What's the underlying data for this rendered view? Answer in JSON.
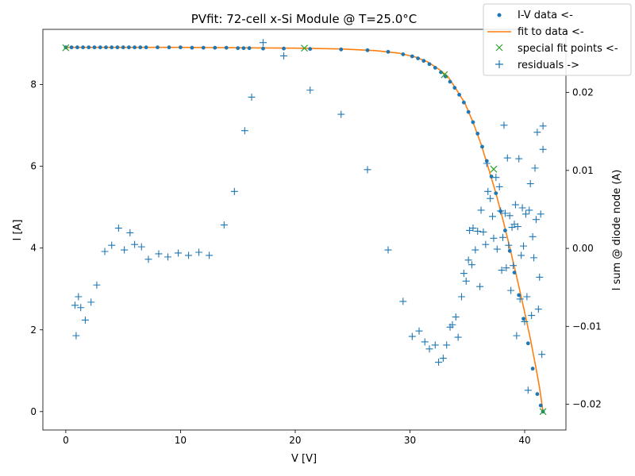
{
  "chart_data": {
    "type": "scatter",
    "title": "PVfit: 72-cell x-Si Module @ T=25.0°C",
    "xlabel": "V [V]",
    "ylabel": "I [A]",
    "y2label": "I sum @ diode node (A)",
    "xlim": [
      -2.0,
      43.6
    ],
    "ylim": [
      -0.45,
      9.35
    ],
    "y2lim": [
      -0.0233,
      0.0281
    ],
    "xticks": [
      0,
      10,
      20,
      30,
      40
    ],
    "yticks": [
      0,
      2,
      4,
      6,
      8
    ],
    "y2ticks": [
      -0.02,
      -0.01,
      0.0,
      0.01,
      0.02
    ],
    "xtick_labels": [
      "0",
      "10",
      "20",
      "30",
      "40"
    ],
    "ytick_labels": [
      "0",
      "2",
      "4",
      "6",
      "8"
    ],
    "y2tick_labels": [
      "−0.02",
      "−0.01",
      "0.00",
      "0.01",
      "0.02"
    ],
    "legend": {
      "position": "top-right",
      "entries": [
        "I-V data <-",
        "fit to data <-",
        "special fit points <-",
        "residuals ->"
      ]
    },
    "colors": {
      "data": "#1f77b4",
      "fit": "#ff7f0e",
      "special": "#2ca02c",
      "residuals": "#1f77b4"
    },
    "series": [
      {
        "name": "I-V data <-",
        "kind": "points",
        "x": [
          0.0,
          0.5,
          1.0,
          1.5,
          2.0,
          2.5,
          3.0,
          3.5,
          4.0,
          4.5,
          5.0,
          5.5,
          6.0,
          6.5,
          7.0,
          8.0,
          9.0,
          10.0,
          11.0,
          12.0,
          13.0,
          14.0,
          15.0,
          15.5,
          16.0,
          17.2,
          19.0,
          21.3,
          24.0,
          26.3,
          28.1,
          29.4,
          30.2,
          30.7,
          31.2,
          31.7,
          32.2,
          32.7,
          33.1,
          33.5,
          33.9,
          34.3,
          34.7,
          35.1,
          35.5,
          35.9,
          36.3,
          36.7,
          37.1,
          37.5,
          37.9,
          38.3,
          38.7,
          39.1,
          39.5,
          39.9,
          40.3,
          40.7,
          41.1,
          41.4,
          41.6
        ],
        "y": [
          8.91,
          8.91,
          8.91,
          8.91,
          8.91,
          8.91,
          8.91,
          8.91,
          8.91,
          8.91,
          8.91,
          8.91,
          8.91,
          8.91,
          8.91,
          8.91,
          8.91,
          8.91,
          8.9,
          8.9,
          8.9,
          8.9,
          8.89,
          8.89,
          8.89,
          8.88,
          8.88,
          8.87,
          8.86,
          8.84,
          8.8,
          8.74,
          8.69,
          8.64,
          8.58,
          8.5,
          8.41,
          8.3,
          8.2,
          8.07,
          7.92,
          7.75,
          7.56,
          7.33,
          7.08,
          6.8,
          6.48,
          6.13,
          5.75,
          5.34,
          4.9,
          4.43,
          3.93,
          3.4,
          2.85,
          2.27,
          1.67,
          1.05,
          0.43,
          0.15,
          0.0
        ]
      },
      {
        "name": "fit to data <-",
        "kind": "line",
        "x": [
          0.0,
          5.0,
          10.0,
          15.0,
          20.0,
          24.0,
          27.0,
          29.0,
          30.5,
          31.5,
          32.5,
          33.3,
          34.0,
          34.8,
          35.5,
          36.2,
          36.9,
          37.5,
          38.1,
          38.7,
          39.3,
          39.9,
          40.5,
          41.0,
          41.3,
          41.6
        ],
        "y": [
          8.91,
          8.91,
          8.91,
          8.9,
          8.89,
          8.87,
          8.83,
          8.77,
          8.67,
          8.56,
          8.38,
          8.2,
          7.9,
          7.54,
          7.08,
          6.54,
          5.9,
          5.34,
          4.7,
          4.02,
          3.3,
          2.56,
          1.78,
          1.05,
          0.58,
          0.0
        ]
      },
      {
        "name": "special fit points <-",
        "kind": "points",
        "x": [
          0.0,
          20.8,
          33.0,
          37.3,
          41.6
        ],
        "y": [
          8.9,
          8.89,
          8.24,
          5.93,
          0.0
        ]
      },
      {
        "name": "residuals ->",
        "kind": "points",
        "axis": "y2",
        "x": [
          0.8,
          0.9,
          1.1,
          1.3,
          1.7,
          2.2,
          2.7,
          3.4,
          4.0,
          4.6,
          5.1,
          5.6,
          6.0,
          6.6,
          7.2,
          8.1,
          8.9,
          9.8,
          10.7,
          11.6,
          12.5,
          13.8,
          14.7,
          15.6,
          16.2,
          17.2,
          19.0,
          21.3,
          24.0,
          26.3,
          28.1,
          29.4,
          30.2,
          30.8,
          31.3,
          31.7,
          32.2,
          32.5,
          32.9,
          33.2,
          33.5,
          33.7,
          34.0,
          34.2,
          34.5,
          34.7,
          34.9,
          35.1,
          35.2,
          35.4,
          35.5,
          35.7,
          35.9,
          36.1,
          36.2,
          36.4,
          36.6,
          36.7,
          36.8,
          37.0,
          37.2,
          37.3,
          37.5,
          37.6,
          37.8,
          37.9,
          38.0,
          38.1,
          38.2,
          38.3,
          38.4,
          38.5,
          38.6,
          38.7,
          38.8,
          38.9,
          39.0,
          39.1,
          39.2,
          39.3,
          39.4,
          39.5,
          39.6,
          39.7,
          39.8,
          39.9,
          40.0,
          40.1,
          40.2,
          40.3,
          40.4,
          40.5,
          40.6,
          40.7,
          40.8,
          40.9,
          41.0,
          41.1,
          41.2,
          41.3,
          41.4,
          41.5,
          41.6,
          41.6
        ],
        "y": [
          -0.0073,
          -0.0112,
          -0.0062,
          -0.0076,
          -0.0092,
          -0.0069,
          -0.0047,
          -0.0004,
          0.0004,
          0.0026,
          -0.0002,
          0.002,
          0.0005,
          0.0002,
          -0.0014,
          -0.0007,
          -0.0011,
          -0.0006,
          -0.0009,
          -0.0005,
          -0.0009,
          0.003,
          0.0073,
          0.0151,
          0.0194,
          0.0264,
          0.0247,
          0.0203,
          0.0172,
          0.0101,
          -0.0002,
          -0.0068,
          -0.0113,
          -0.0106,
          -0.012,
          -0.0129,
          -0.0124,
          -0.0146,
          -0.0141,
          -0.0124,
          -0.0101,
          -0.0098,
          -0.0088,
          -0.0114,
          -0.0062,
          -0.0032,
          -0.0042,
          -0.0015,
          0.0023,
          -0.0021,
          0.0026,
          -0.0002,
          0.0022,
          -0.0049,
          0.0049,
          0.0021,
          0.0005,
          0.0109,
          0.0073,
          0.0064,
          0.0041,
          0.0013,
          0.0091,
          -0.0001,
          0.0079,
          0.0048,
          -0.0028,
          0.0014,
          0.0158,
          0.0045,
          -0.0025,
          0.0116,
          0.0004,
          0.0042,
          -0.0054,
          0.0027,
          -0.0022,
          0.0031,
          0.0056,
          -0.0112,
          0.0028,
          0.0115,
          -0.0065,
          -0.0009,
          0.0052,
          0.0003,
          -0.0094,
          0.0044,
          -0.0062,
          -0.0182,
          0.0049,
          0.0083,
          -0.0086,
          0.0015,
          -0.0012,
          0.0103,
          0.0037,
          0.0149,
          -0.0078,
          -0.0037,
          0.0044,
          -0.0136,
          0.0127,
          0.0157
        ]
      }
    ]
  }
}
